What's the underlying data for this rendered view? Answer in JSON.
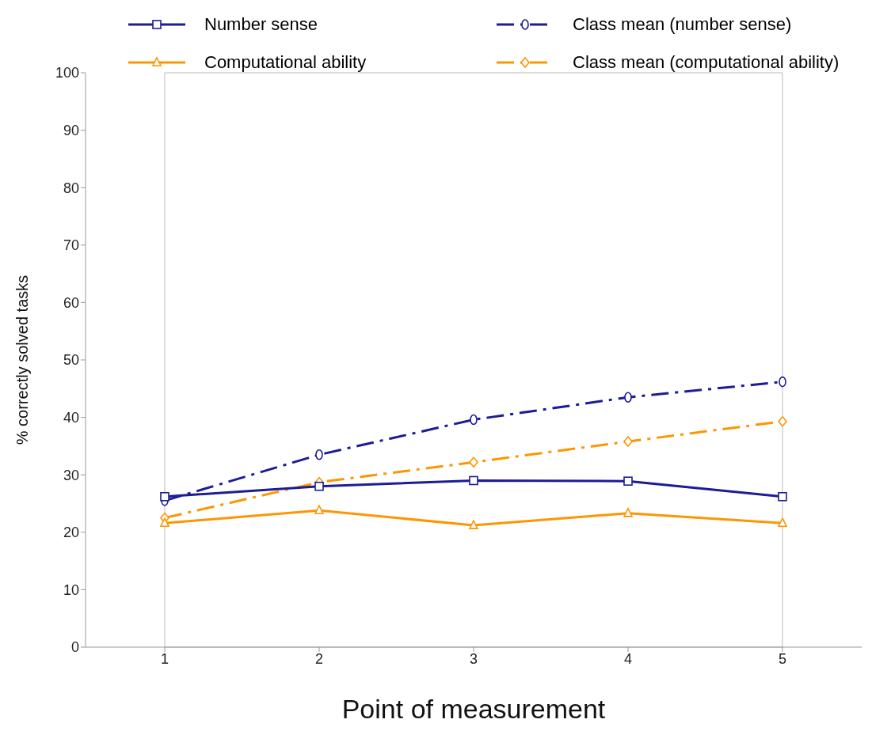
{
  "chart_data": {
    "type": "line",
    "xlabel": "Point of measurement",
    "ylabel": "% correctly solved tasks",
    "categories": [
      "1",
      "2",
      "3",
      "4",
      "5"
    ],
    "series": [
      {
        "name": "Number sense",
        "color": "#1c1c96",
        "values": [
          26.2,
          28.0,
          29.0,
          28.9,
          26.2
        ],
        "marker": "square",
        "line_style": "solid"
      },
      {
        "name": "Class mean (number sense)",
        "color": "#1c1c96",
        "values": [
          25.5,
          33.5,
          39.6,
          43.5,
          46.2
        ],
        "marker": "circle",
        "line_style": "dashed"
      },
      {
        "name": "Computational ability",
        "color": "#ff9500",
        "values": [
          21.6,
          23.8,
          21.2,
          23.3,
          21.6
        ],
        "marker": "triangle",
        "line_style": "solid"
      },
      {
        "name": "Class mean (computational ability)",
        "color": "#ff9500",
        "values": [
          22.5,
          28.7,
          32.2,
          35.8,
          39.3
        ],
        "marker": "diamond",
        "line_style": "dashed"
      }
    ],
    "ylim": [
      0,
      100
    ],
    "yticks": [
      0,
      10,
      20,
      30,
      40,
      50,
      60,
      70,
      80,
      90,
      100
    ],
    "legend": "top"
  }
}
